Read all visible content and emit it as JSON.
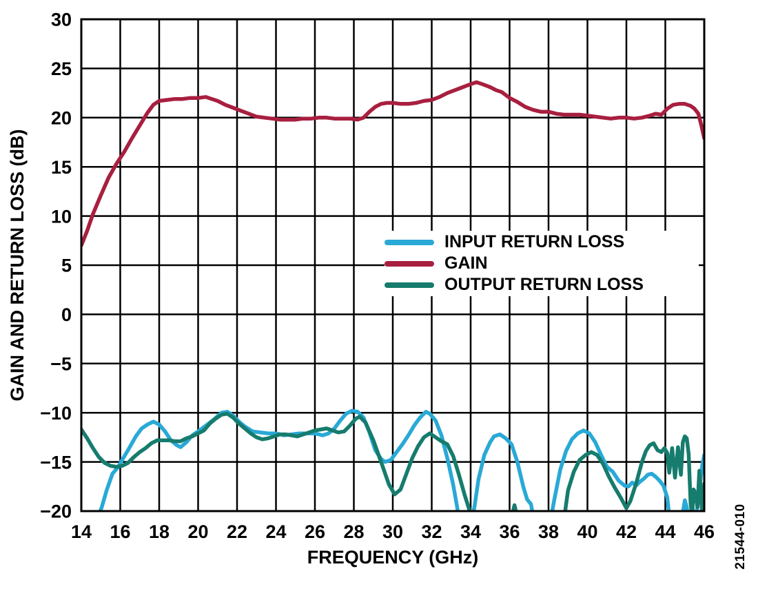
{
  "watermark": "21544-010",
  "chart_data": {
    "type": "line",
    "title": "",
    "xlabel": "FREQUENCY (GHz)",
    "ylabel": "GAIN AND RETURN LOSS (dB)",
    "xlim": [
      14,
      46
    ],
    "ylim": [
      -20,
      30
    ],
    "x_ticks": [
      14,
      16,
      18,
      20,
      22,
      24,
      26,
      28,
      30,
      32,
      34,
      36,
      38,
      40,
      42,
      44,
      46
    ],
    "y_ticks": [
      -20,
      -15,
      -10,
      -5,
      0,
      5,
      10,
      15,
      20,
      25,
      30
    ],
    "grid": true,
    "grid_color": "#000000",
    "axis_color": "#000000",
    "background": "#ffffff",
    "legend_position": "center-right",
    "series": [
      {
        "name": "INPUT RETURN LOSS",
        "color": "#29A9D6",
        "points": [
          [
            14.85,
            -20.6
          ],
          [
            15.05,
            -19.6
          ],
          [
            15.3,
            -17.9
          ],
          [
            15.6,
            -16.2
          ],
          [
            15.9,
            -15.5
          ],
          [
            16.1,
            -14.8
          ],
          [
            16.4,
            -13.8
          ],
          [
            16.8,
            -12.4
          ],
          [
            17.1,
            -11.6
          ],
          [
            17.4,
            -11.2
          ],
          [
            17.7,
            -10.9
          ],
          [
            18.0,
            -11.2
          ],
          [
            18.3,
            -11.9
          ],
          [
            18.6,
            -12.8
          ],
          [
            18.9,
            -13.3
          ],
          [
            19.1,
            -13.5
          ],
          [
            19.4,
            -13.0
          ],
          [
            19.7,
            -12.3
          ],
          [
            20.0,
            -11.9
          ],
          [
            20.4,
            -11.3
          ],
          [
            20.8,
            -10.7
          ],
          [
            21.2,
            -10.0
          ],
          [
            21.5,
            -9.9
          ],
          [
            21.8,
            -10.3
          ],
          [
            22.1,
            -10.9
          ],
          [
            22.4,
            -11.4
          ],
          [
            22.8,
            -11.9
          ],
          [
            23.2,
            -12.0
          ],
          [
            23.6,
            -12.1
          ],
          [
            24.0,
            -12.1
          ],
          [
            24.4,
            -12.3
          ],
          [
            24.8,
            -12.2
          ],
          [
            25.2,
            -12.1
          ],
          [
            25.6,
            -12.1
          ],
          [
            26.0,
            -12.1
          ],
          [
            26.4,
            -12.3
          ],
          [
            26.7,
            -12.1
          ],
          [
            27.0,
            -11.6
          ],
          [
            27.3,
            -10.8
          ],
          [
            27.6,
            -10.1
          ],
          [
            27.9,
            -9.8
          ],
          [
            28.2,
            -9.9
          ],
          [
            28.5,
            -10.5
          ],
          [
            28.8,
            -12.0
          ],
          [
            29.1,
            -13.8
          ],
          [
            29.4,
            -14.7
          ],
          [
            29.6,
            -15.0
          ],
          [
            29.9,
            -14.8
          ],
          [
            30.2,
            -14.0
          ],
          [
            30.5,
            -13.2
          ],
          [
            30.8,
            -12.3
          ],
          [
            31.1,
            -11.3
          ],
          [
            31.4,
            -10.5
          ],
          [
            31.7,
            -9.9
          ],
          [
            31.9,
            -10.1
          ],
          [
            32.2,
            -10.8
          ],
          [
            32.5,
            -12.3
          ],
          [
            32.8,
            -14.6
          ],
          [
            33.1,
            -17.3
          ],
          [
            33.3,
            -19.5
          ],
          [
            33.45,
            -21.5
          ],
          [
            34.0,
            -21.5
          ],
          [
            34.2,
            -19.5
          ],
          [
            34.4,
            -16.8
          ],
          [
            34.7,
            -14.3
          ],
          [
            35.0,
            -13.0
          ],
          [
            35.2,
            -12.4
          ],
          [
            35.5,
            -12.2
          ],
          [
            35.8,
            -12.6
          ],
          [
            36.1,
            -13.2
          ],
          [
            36.4,
            -15.0
          ],
          [
            36.7,
            -17.5
          ],
          [
            36.9,
            -18.8
          ],
          [
            37.1,
            -19.3
          ],
          [
            37.3,
            -21.5
          ],
          [
            38.05,
            -21.5
          ],
          [
            38.3,
            -18.8
          ],
          [
            38.6,
            -15.8
          ],
          [
            38.9,
            -13.9
          ],
          [
            39.2,
            -12.7
          ],
          [
            39.5,
            -12.1
          ],
          [
            39.8,
            -11.8
          ],
          [
            40.1,
            -12.1
          ],
          [
            40.4,
            -13.0
          ],
          [
            40.7,
            -14.3
          ],
          [
            41.0,
            -15.5
          ],
          [
            41.3,
            -16.0
          ],
          [
            41.6,
            -16.9
          ],
          [
            41.9,
            -17.4
          ],
          [
            42.1,
            -17.5
          ],
          [
            42.3,
            -17.1
          ],
          [
            42.5,
            -17.4
          ],
          [
            42.7,
            -17.0
          ],
          [
            42.9,
            -16.7
          ],
          [
            43.1,
            -16.3
          ],
          [
            43.3,
            -16.2
          ],
          [
            43.5,
            -16.5
          ],
          [
            43.7,
            -16.9
          ],
          [
            43.9,
            -17.4
          ],
          [
            44.1,
            -18.6
          ],
          [
            44.25,
            -21.3
          ],
          [
            44.85,
            -20.8
          ],
          [
            45.0,
            -18.9
          ],
          [
            45.1,
            -19.6
          ],
          [
            45.2,
            -20.9
          ],
          [
            45.5,
            -21.0
          ],
          [
            45.65,
            -19.6
          ],
          [
            45.8,
            -17.0
          ],
          [
            45.9,
            -15.3
          ],
          [
            46.0,
            -14.3
          ]
        ]
      },
      {
        "name": "GAIN",
        "color": "#A81F3F",
        "points": [
          [
            14.0,
            7.0
          ],
          [
            14.3,
            8.5
          ],
          [
            14.6,
            10.2
          ],
          [
            15.0,
            12.1
          ],
          [
            15.4,
            13.9
          ],
          [
            15.8,
            15.3
          ],
          [
            16.2,
            16.5
          ],
          [
            16.6,
            17.9
          ],
          [
            17.0,
            19.2
          ],
          [
            17.4,
            20.5
          ],
          [
            17.7,
            21.3
          ],
          [
            18.0,
            21.7
          ],
          [
            18.4,
            21.8
          ],
          [
            18.8,
            21.9
          ],
          [
            19.2,
            21.9
          ],
          [
            19.6,
            22.0
          ],
          [
            20.0,
            22.0
          ],
          [
            20.4,
            22.1
          ],
          [
            20.7,
            21.9
          ],
          [
            21.0,
            21.7
          ],
          [
            21.4,
            21.3
          ],
          [
            21.8,
            21.0
          ],
          [
            22.2,
            20.7
          ],
          [
            22.6,
            20.4
          ],
          [
            23.0,
            20.1
          ],
          [
            23.4,
            20.0
          ],
          [
            23.8,
            19.9
          ],
          [
            24.2,
            19.8
          ],
          [
            24.6,
            19.8
          ],
          [
            25.0,
            19.8
          ],
          [
            25.4,
            19.9
          ],
          [
            25.8,
            19.9
          ],
          [
            26.2,
            20.0
          ],
          [
            26.6,
            20.0
          ],
          [
            27.0,
            19.9
          ],
          [
            27.4,
            19.9
          ],
          [
            27.8,
            19.9
          ],
          [
            28.2,
            19.8
          ],
          [
            28.5,
            20.0
          ],
          [
            28.8,
            20.6
          ],
          [
            29.1,
            21.1
          ],
          [
            29.4,
            21.4
          ],
          [
            29.7,
            21.5
          ],
          [
            30.0,
            21.5
          ],
          [
            30.4,
            21.4
          ],
          [
            30.8,
            21.4
          ],
          [
            31.2,
            21.5
          ],
          [
            31.6,
            21.7
          ],
          [
            32.0,
            21.8
          ],
          [
            32.4,
            22.1
          ],
          [
            32.8,
            22.5
          ],
          [
            33.2,
            22.8
          ],
          [
            33.6,
            23.1
          ],
          [
            34.0,
            23.4
          ],
          [
            34.3,
            23.6
          ],
          [
            34.6,
            23.4
          ],
          [
            35.0,
            23.1
          ],
          [
            35.3,
            22.8
          ],
          [
            35.6,
            22.6
          ],
          [
            36.0,
            22.0
          ],
          [
            36.4,
            21.6
          ],
          [
            36.8,
            21.1
          ],
          [
            37.2,
            20.8
          ],
          [
            37.6,
            20.6
          ],
          [
            38.0,
            20.6
          ],
          [
            38.4,
            20.4
          ],
          [
            38.8,
            20.3
          ],
          [
            39.2,
            20.3
          ],
          [
            39.6,
            20.3
          ],
          [
            40.0,
            20.2
          ],
          [
            40.4,
            20.1
          ],
          [
            40.8,
            20.0
          ],
          [
            41.2,
            19.9
          ],
          [
            41.6,
            20.0
          ],
          [
            42.0,
            20.0
          ],
          [
            42.4,
            19.9
          ],
          [
            42.8,
            20.0
          ],
          [
            43.2,
            20.2
          ],
          [
            43.5,
            20.4
          ],
          [
            43.8,
            20.3
          ],
          [
            44.1,
            20.9
          ],
          [
            44.4,
            21.3
          ],
          [
            44.7,
            21.4
          ],
          [
            45.0,
            21.4
          ],
          [
            45.3,
            21.2
          ],
          [
            45.5,
            20.9
          ],
          [
            45.7,
            20.4
          ],
          [
            45.85,
            19.2
          ],
          [
            46.0,
            17.9
          ]
        ]
      },
      {
        "name": "OUTPUT RETURN LOSS",
        "color": "#167C6D",
        "points": [
          [
            14.0,
            -11.7
          ],
          [
            14.3,
            -12.6
          ],
          [
            14.6,
            -13.6
          ],
          [
            14.9,
            -14.5
          ],
          [
            15.2,
            -15.1
          ],
          [
            15.5,
            -15.4
          ],
          [
            15.8,
            -15.5
          ],
          [
            16.1,
            -15.4
          ],
          [
            16.4,
            -15.1
          ],
          [
            16.7,
            -14.5
          ],
          [
            17.0,
            -14.0
          ],
          [
            17.3,
            -13.6
          ],
          [
            17.6,
            -13.1
          ],
          [
            17.9,
            -12.8
          ],
          [
            18.2,
            -12.8
          ],
          [
            18.5,
            -12.8
          ],
          [
            18.8,
            -12.9
          ],
          [
            19.1,
            -12.9
          ],
          [
            19.4,
            -12.6
          ],
          [
            19.7,
            -12.4
          ],
          [
            20.0,
            -12.1
          ],
          [
            20.3,
            -11.8
          ],
          [
            20.6,
            -11.1
          ],
          [
            20.9,
            -10.6
          ],
          [
            21.2,
            -10.2
          ],
          [
            21.5,
            -10.1
          ],
          [
            21.8,
            -10.5
          ],
          [
            22.1,
            -11.1
          ],
          [
            22.4,
            -11.6
          ],
          [
            22.7,
            -12.1
          ],
          [
            23.0,
            -12.5
          ],
          [
            23.3,
            -12.7
          ],
          [
            23.6,
            -12.6
          ],
          [
            23.9,
            -12.4
          ],
          [
            24.2,
            -12.2
          ],
          [
            24.5,
            -12.2
          ],
          [
            24.8,
            -12.3
          ],
          [
            25.1,
            -12.4
          ],
          [
            25.4,
            -12.2
          ],
          [
            25.7,
            -12.0
          ],
          [
            26.0,
            -11.8
          ],
          [
            26.3,
            -11.7
          ],
          [
            26.6,
            -11.6
          ],
          [
            26.9,
            -11.8
          ],
          [
            27.2,
            -12.0
          ],
          [
            27.5,
            -11.9
          ],
          [
            27.8,
            -11.3
          ],
          [
            28.1,
            -10.6
          ],
          [
            28.3,
            -10.4
          ],
          [
            28.6,
            -11.0
          ],
          [
            29.0,
            -12.8
          ],
          [
            29.4,
            -15.0
          ],
          [
            29.8,
            -17.3
          ],
          [
            30.1,
            -18.3
          ],
          [
            30.4,
            -17.8
          ],
          [
            30.7,
            -16.2
          ],
          [
            31.0,
            -14.6
          ],
          [
            31.3,
            -13.4
          ],
          [
            31.6,
            -12.5
          ],
          [
            31.9,
            -12.1
          ],
          [
            32.2,
            -12.5
          ],
          [
            32.5,
            -12.9
          ],
          [
            32.8,
            -13.2
          ],
          [
            33.1,
            -14.4
          ],
          [
            33.4,
            -16.3
          ],
          [
            33.7,
            -18.4
          ],
          [
            34.0,
            -20.3
          ],
          [
            34.1,
            -21.5
          ],
          [
            36.0,
            -21.5
          ],
          [
            36.25,
            -19.4
          ],
          [
            36.5,
            -21.5
          ],
          [
            38.75,
            -21.5
          ],
          [
            39.0,
            -17.9
          ],
          [
            39.3,
            -16.0
          ],
          [
            39.6,
            -14.8
          ],
          [
            39.9,
            -14.3
          ],
          [
            40.2,
            -14.0
          ],
          [
            40.5,
            -14.3
          ],
          [
            40.8,
            -15.2
          ],
          [
            41.1,
            -16.5
          ],
          [
            41.4,
            -17.6
          ],
          [
            41.7,
            -18.6
          ],
          [
            42.0,
            -19.7
          ],
          [
            42.2,
            -19.0
          ],
          [
            42.5,
            -17.2
          ],
          [
            42.8,
            -15.0
          ],
          [
            43.0,
            -13.9
          ],
          [
            43.2,
            -13.3
          ],
          [
            43.4,
            -13.1
          ],
          [
            43.6,
            -13.8
          ],
          [
            43.8,
            -14.0
          ],
          [
            43.95,
            -13.6
          ],
          [
            44.1,
            -14.1
          ],
          [
            44.2,
            -16.1
          ],
          [
            44.35,
            -13.6
          ],
          [
            44.5,
            -16.6
          ],
          [
            44.65,
            -13.5
          ],
          [
            44.8,
            -16.3
          ],
          [
            44.9,
            -13.0
          ],
          [
            45.0,
            -12.4
          ],
          [
            45.1,
            -12.6
          ],
          [
            45.2,
            -14.2
          ],
          [
            45.3,
            -19.2
          ],
          [
            45.38,
            -20.6
          ],
          [
            45.45,
            -17.8
          ],
          [
            45.55,
            -18.2
          ],
          [
            45.65,
            -19.6
          ],
          [
            45.75,
            -15.9
          ],
          [
            45.82,
            -18.0
          ],
          [
            45.9,
            -20.5
          ],
          [
            46.0,
            -17.2
          ]
        ]
      }
    ]
  }
}
